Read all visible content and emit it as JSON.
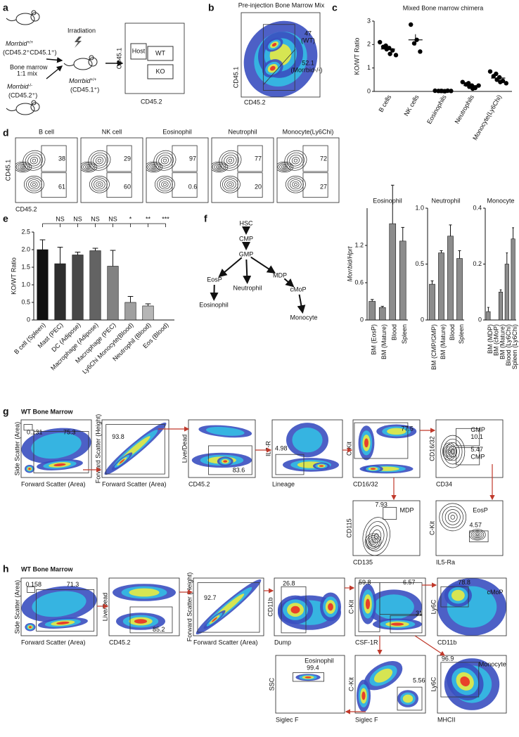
{
  "panel_labels": [
    "a",
    "b",
    "c",
    "d",
    "e",
    "f",
    "g",
    "h"
  ],
  "a": {
    "wt_donor": {
      "gene": "Morrbid",
      "genotype": "+/+",
      "marker": "(CD45.2⁺CD45.1⁺)"
    },
    "irradiation": "Irradiation",
    "mix": [
      "Bone marrow",
      "1:1 mix"
    ],
    "ko_donor": {
      "gene": "Morrbid",
      "genotype": "-/-",
      "marker": "(CD45.2⁺)"
    },
    "recipient": {
      "gene": "Morrbid",
      "genotype": "+/+",
      "marker": "(CD45.1⁺)"
    },
    "gate_plot": {
      "host": "Host",
      "wt": "WT",
      "ko": "KO",
      "y_label": "CD45.1",
      "x_label": "CD45.2"
    }
  },
  "b": {
    "title": "Pre-injection Bone Marrow Mix",
    "wt_percent": 47,
    "wt_label": "(WT)",
    "ko_percent": 52.1,
    "ko_label": "(Morrbid-/-)",
    "y_label": "CD45.1",
    "x_label": "CD45.2"
  },
  "chart_data": [
    {
      "type": "strip",
      "title": "Mixed Bone marrow chimera",
      "y_label": "KO/WT Ratio",
      "categories": [
        "B cells",
        "NK cells",
        "Eosinophils",
        "Neutrophils",
        "Monocyte(Ly6Chi)"
      ],
      "points": [
        [
          2.1,
          1.95,
          1.9,
          1.85,
          1.8,
          1.75,
          1.6,
          1.55
        ],
        [
          2.85,
          2.2,
          2.05,
          1.7
        ],
        [
          0.03,
          0.02,
          0.02,
          0.01,
          0.02,
          0.03,
          0.01,
          0.02
        ],
        [
          0.4,
          0.35,
          0.3,
          0.25,
          0.2,
          0.15,
          0.12,
          0.25
        ],
        [
          0.85,
          0.75,
          0.65,
          0.6,
          0.5,
          0.45,
          0.4,
          0.35
        ]
      ],
      "means": [
        1.81,
        2.2,
        0.02,
        0.25,
        0.57
      ],
      "errors": [
        0.07,
        0.24,
        0.003,
        0.04,
        0.06
      ],
      "color": "#000000",
      "ylim": [
        0,
        3
      ],
      "yticks": [
        0,
        1,
        2,
        3
      ]
    },
    {
      "type": "bar",
      "y_label": "KO/WT Ratio",
      "categories": [
        "B cell (Spleen)",
        "Mast (PEC)",
        "DC (Adipose)",
        "Macrophage (Adipose)",
        "Macrophage (PEC)",
        "Ly6Chi Monocyte(Blood)",
        "Neutrophil (Blood)",
        "Eos (Blood)"
      ],
      "values": [
        2.0,
        1.6,
        1.85,
        1.97,
        1.53,
        0.5,
        0.4,
        0
      ],
      "errors": [
        0.28,
        0.47,
        0.08,
        0.07,
        0.45,
        0.17,
        0.06,
        0
      ],
      "colors": [
        "#111111",
        "#2e2e2e",
        "#484848",
        "#636363",
        "#828282",
        "#a0a0a0",
        "#b6b6b6",
        "#cacaca"
      ],
      "significance": [
        "NS",
        "NS",
        "NS",
        "NS",
        "*",
        "**",
        "***"
      ],
      "ylim": [
        0,
        2.5
      ],
      "yticks": [
        0,
        0.5,
        {
          "value": 1,
          "label": "1.0"
        },
        1.5,
        {
          "value": 2,
          "label": "2.0"
        },
        2.5
      ]
    },
    {
      "type": "bar",
      "title": "Eosinophil",
      "y_label": "Morrbid/Hprt",
      "categories": [
        "BM (EosP)",
        "BM (Mature)",
        "Blood",
        "Spleen"
      ],
      "values": [
        0.3,
        0.2,
        1.55,
        1.27
      ],
      "errors": [
        0.03,
        0.02,
        0.62,
        0.22
      ],
      "color": "#8c8c8c",
      "ylim": [
        0,
        1.8
      ],
      "yticks": [
        0,
        0.6,
        1.2
      ]
    },
    {
      "type": "bar",
      "title": "Neutrophil",
      "categories": [
        "BM (CMP/GMP)",
        "BM (Mature)",
        "Blood",
        "Spleen"
      ],
      "values": [
        0.32,
        0.6,
        0.75,
        0.55
      ],
      "errors": [
        0.03,
        0.02,
        0.1,
        0.07
      ],
      "color": "#8c8c8c",
      "ylim": [
        0,
        1
      ],
      "yticks": [
        0,
        0.5,
        {
          "value": 1,
          "label": "1.0"
        }
      ]
    },
    {
      "type": "bar",
      "title": "Monocyte",
      "categories": [
        "BM (MDP)",
        "BM (cMoP)",
        "BM (Mature)",
        "Blood (Ly6Chi)",
        "Spleen (Ly6Chi)"
      ],
      "values": [
        0.03,
        0,
        0.1,
        0.2,
        0.29
      ],
      "errors": [
        0.015,
        0,
        0.008,
        0.04,
        0.04
      ],
      "color": "#8c8c8c",
      "ylim": [
        0,
        0.4
      ],
      "yticks": [
        0,
        0.2,
        0.4
      ]
    }
  ],
  "d": {
    "y_label": "CD45.1",
    "x_label": "CD45.2",
    "plots": [
      {
        "title": "B cell",
        "wt": 38,
        "ko": 61
      },
      {
        "title": "NK cell",
        "wt": 29,
        "ko": 60
      },
      {
        "title": "Eosinophil",
        "wt": 97,
        "ko": 0.6
      },
      {
        "title": "Neutrophil",
        "wt": 77,
        "ko": 20
      },
      {
        "title": "Monocyte(Ly6Chi)",
        "wt": 72,
        "ko": 27
      }
    ]
  },
  "f_lineage": {
    "nodes": [
      "HSC",
      "CMP",
      "GMP",
      "EosP",
      "Neutrophil",
      "MDP",
      "cMoP",
      "Eosinophil",
      "Monocyte"
    ]
  },
  "g": {
    "title": "WT Bone Marrow",
    "plots": [
      {
        "x_label": "Forward Scatter (Area)",
        "y_label": "Side Scatter (Area)",
        "gates": [
          0.131,
          75.3
        ]
      },
      {
        "x_label": "Forward Scatter (Area)",
        "y_label": "Forward Scatter (Height)",
        "gates": [
          93.8
        ]
      },
      {
        "x_label": "CD45.2",
        "y_label": "Live/Dead",
        "gates": [
          83.6
        ]
      },
      {
        "x_label": "Lineage",
        "y_label": "IL7-R",
        "gates": [
          4.98
        ]
      },
      {
        "x_label": "CD16/32",
        "y_label": "C-Kit",
        "gates": [
          77.5
        ]
      },
      {
        "x_label": "CD34",
        "y_label": "CD16/32",
        "gates": [
          10.1,
          5.47
        ],
        "names": [
          "GMP",
          "CMP"
        ]
      },
      {
        "x_label": "CD135",
        "y_label": "CD115",
        "gates": [
          7.93
        ],
        "names": [
          "MDP"
        ]
      },
      {
        "x_label": "IL5-Ra",
        "y_label": "C-Kit",
        "gates": [
          4.57
        ],
        "names": [
          "EosP"
        ]
      }
    ]
  },
  "h": {
    "title": "WT Bone Marrow",
    "plots": [
      {
        "x_label": "Forward Scatter (Area)",
        "y_label": "Side Scatter (Area)",
        "gates": [
          0.158,
          71.3
        ]
      },
      {
        "x_label": "CD45.2",
        "y_label": "Live/Dead",
        "gates": [
          85.2
        ]
      },
      {
        "x_label": "Forward Scatter (Area)",
        "y_label": "Forward Scatter (Height)",
        "gates": [
          92.7
        ]
      },
      {
        "x_label": "Dump",
        "y_label": "CD11b",
        "gates": [
          26.8
        ]
      },
      {
        "x_label": "CSF-1R",
        "y_label": "C-Kit",
        "gates": [
          59.8,
          6.57,
          31
        ]
      },
      {
        "x_label": "CD11b",
        "y_label": "Ly6C",
        "gates": [
          78.8
        ],
        "names": [
          "cMoP"
        ]
      },
      {
        "x_label": "Siglec F",
        "y_label": "SSC",
        "gates": [
          99.4
        ],
        "names": [
          "Eosinophil"
        ]
      },
      {
        "x_label": "Siglec F",
        "y_label": "C-Kit",
        "gates": [
          5.56
        ]
      },
      {
        "x_label": "MHCII",
        "y_label": "Ly6C",
        "gates": [
          96.9
        ],
        "names": [
          "Monocyte"
        ]
      }
    ]
  }
}
